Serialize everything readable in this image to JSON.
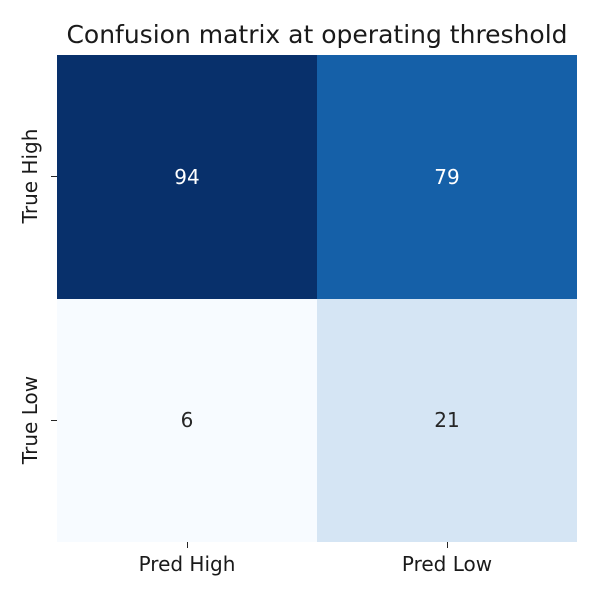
{
  "figure": {
    "background": "#ffffff"
  },
  "chart_data": {
    "type": "heatmap",
    "title": "Confusion matrix at operating threshold",
    "x_categories": [
      "Pred High",
      "Pred Low"
    ],
    "y_categories": [
      "True High",
      "True Low"
    ],
    "values": [
      [
        94,
        79
      ],
      [
        6,
        21
      ]
    ],
    "cell_colors": [
      [
        "#08306b",
        "#1560a8"
      ],
      [
        "#f7fbff",
        "#d5e5f4"
      ]
    ],
    "text_colors": [
      [
        "#ffffff",
        "#ffffff"
      ],
      [
        "#262626",
        "#262626"
      ]
    ],
    "colormap": "Blues",
    "value_range": [
      6,
      94
    ],
    "legend": "none",
    "grid": false
  }
}
